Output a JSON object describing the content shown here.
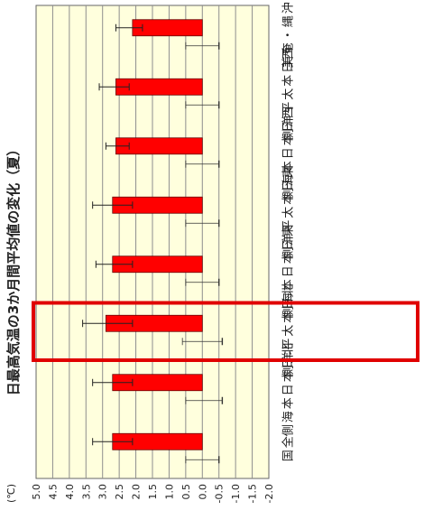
{
  "chart_data": {
    "type": "bar",
    "orientation": "horizontal",
    "title": "日最高気温の3か月間平均値の変化（夏）",
    "ylabel": "(℃)",
    "ylim": [
      -2.0,
      5.0
    ],
    "tick_labels": [
      "5.0",
      "4.5",
      "4.0",
      "3.5",
      "3.0",
      "2.5",
      "2.0",
      "1.5",
      "1.0",
      "0.5",
      "0.0",
      "-0.5",
      "-1.0",
      "-1.5",
      "-2.0"
    ],
    "categories": [
      "沖縄・奄美",
      "西日本太平洋側",
      "西日本日本海側",
      "東日本太平洋側",
      "東日本日本海側",
      "北日本太平洋側",
      "北日本日本海側",
      "全国"
    ],
    "series": [
      {
        "values": [
          2.1,
          2.6,
          2.6,
          2.7,
          2.7,
          2.9,
          2.7,
          2.7
        ],
        "error": [
          [
            1.8,
            2.6
          ],
          [
            2.2,
            3.1
          ],
          [
            2.2,
            2.9
          ],
          [
            2.1,
            3.3
          ],
          [
            2.1,
            3.2
          ],
          [
            2.1,
            3.6
          ],
          [
            2.1,
            3.3
          ],
          [
            2.1,
            3.3
          ]
        ]
      },
      {
        "values": [
          0.0,
          0.0,
          0.0,
          0.0,
          0.0,
          0.0,
          0.0,
          0.0
        ],
        "error": [
          [
            -0.5,
            0.5
          ],
          [
            -0.5,
            0.5
          ],
          [
            -0.5,
            0.5
          ],
          [
            -0.5,
            0.5
          ],
          [
            -0.5,
            0.5
          ],
          [
            -0.6,
            0.6
          ],
          [
            -0.6,
            0.5
          ],
          [
            -0.5,
            0.5
          ]
        ]
      }
    ],
    "highlight_category": "北日本太平洋側",
    "colors": {
      "bar": "#ff0000",
      "plot_bg": "#ffffdd",
      "grid": "#8e8e8e",
      "highlight": "#e00000"
    },
    "grid": true
  }
}
